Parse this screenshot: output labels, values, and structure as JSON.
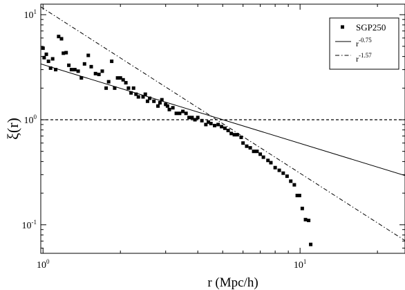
{
  "chart_data": {
    "type": "scatter",
    "xlabel": "r (Mpc/h)",
    "ylabel": "ξ(r)",
    "xscale": "log",
    "yscale": "log",
    "xlim": [
      0.98,
      25.6
    ],
    "ylim": [
      0.0535,
      12.6
    ],
    "x_ticks": [
      {
        "value": 1,
        "base": "10",
        "exp": "0"
      },
      {
        "value": 10,
        "base": "10",
        "exp": "1"
      }
    ],
    "y_ticks": [
      {
        "value": 0.1,
        "base": "10",
        "exp": "-1"
      },
      {
        "value": 1,
        "base": "10",
        "exp": "0"
      },
      {
        "value": 10,
        "base": "10",
        "exp": "1"
      }
    ],
    "legend_position": "top-right",
    "legend": [
      {
        "label": "SGP250",
        "style": "square-marker"
      },
      {
        "label_base": "r",
        "label_exp": "-0.75",
        "style": "solid"
      },
      {
        "label_base": "r",
        "label_exp": "-1.57",
        "style": "dash-dot"
      }
    ],
    "reference_line": {
      "y": 1,
      "style": "dashed"
    },
    "power_laws": [
      {
        "name": "r^-0.75",
        "amplitude": 3.35,
        "slope": -0.75,
        "style": "solid"
      },
      {
        "name": "r^-1.57",
        "amplitude": 11.5,
        "slope": -1.57,
        "style": "dash-dot"
      }
    ],
    "series": [
      {
        "name": "SGP250",
        "points": [
          [
            1.0,
            4.8
          ],
          [
            1.01,
            3.9
          ],
          [
            1.03,
            4.2
          ],
          [
            1.05,
            3.6
          ],
          [
            1.07,
            3.1
          ],
          [
            1.09,
            3.8
          ],
          [
            1.12,
            3.0
          ],
          [
            1.15,
            6.2
          ],
          [
            1.18,
            5.9
          ],
          [
            1.2,
            4.3
          ],
          [
            1.23,
            4.35
          ],
          [
            1.26,
            3.3
          ],
          [
            1.29,
            3.0
          ],
          [
            1.33,
            3.0
          ],
          [
            1.37,
            2.9
          ],
          [
            1.41,
            2.5
          ],
          [
            1.45,
            3.4
          ],
          [
            1.5,
            4.1
          ],
          [
            1.54,
            3.2
          ],
          [
            1.6,
            2.75
          ],
          [
            1.65,
            2.7
          ],
          [
            1.7,
            2.9
          ],
          [
            1.76,
            2.0
          ],
          [
            1.8,
            2.3
          ],
          [
            1.85,
            3.6
          ],
          [
            1.9,
            2.0
          ],
          [
            1.95,
            2.5
          ],
          [
            2.0,
            2.5
          ],
          [
            2.05,
            2.4
          ],
          [
            2.1,
            2.25
          ],
          [
            2.15,
            2.0
          ],
          [
            2.2,
            1.8
          ],
          [
            2.25,
            2.0
          ],
          [
            2.3,
            1.75
          ],
          [
            2.35,
            1.65
          ],
          [
            2.45,
            1.65
          ],
          [
            2.5,
            1.75
          ],
          [
            2.55,
            1.5
          ],
          [
            2.6,
            1.6
          ],
          [
            2.7,
            1.5
          ],
          [
            2.8,
            1.35
          ],
          [
            2.85,
            1.45
          ],
          [
            2.9,
            1.55
          ],
          [
            3.0,
            1.4
          ],
          [
            3.05,
            1.35
          ],
          [
            3.1,
            1.25
          ],
          [
            3.2,
            1.3
          ],
          [
            3.3,
            1.15
          ],
          [
            3.4,
            1.15
          ],
          [
            3.5,
            1.2
          ],
          [
            3.6,
            1.15
          ],
          [
            3.7,
            1.05
          ],
          [
            3.8,
            1.05
          ],
          [
            3.9,
            1.0
          ],
          [
            4.0,
            1.05
          ],
          [
            4.15,
            0.98
          ],
          [
            4.3,
            0.9
          ],
          [
            4.4,
            0.95
          ],
          [
            4.5,
            0.92
          ],
          [
            4.65,
            0.88
          ],
          [
            4.8,
            0.9
          ],
          [
            4.95,
            0.86
          ],
          [
            5.1,
            0.83
          ],
          [
            5.25,
            0.79
          ],
          [
            5.4,
            0.74
          ],
          [
            5.55,
            0.72
          ],
          [
            5.7,
            0.72
          ],
          [
            5.9,
            0.68
          ],
          [
            6.0,
            0.6
          ],
          [
            6.2,
            0.56
          ],
          [
            6.4,
            0.54
          ],
          [
            6.6,
            0.5
          ],
          [
            6.8,
            0.5
          ],
          [
            7.0,
            0.47
          ],
          [
            7.2,
            0.44
          ],
          [
            7.5,
            0.41
          ],
          [
            7.7,
            0.39
          ],
          [
            8.0,
            0.35
          ],
          [
            8.3,
            0.33
          ],
          [
            8.6,
            0.31
          ],
          [
            8.9,
            0.29
          ],
          [
            9.2,
            0.26
          ],
          [
            9.5,
            0.24
          ],
          [
            9.75,
            0.19
          ],
          [
            9.95,
            0.19
          ],
          [
            10.2,
            0.143
          ],
          [
            10.5,
            0.112
          ],
          [
            10.8,
            0.11
          ],
          [
            11.0,
            0.065
          ]
        ]
      }
    ]
  }
}
